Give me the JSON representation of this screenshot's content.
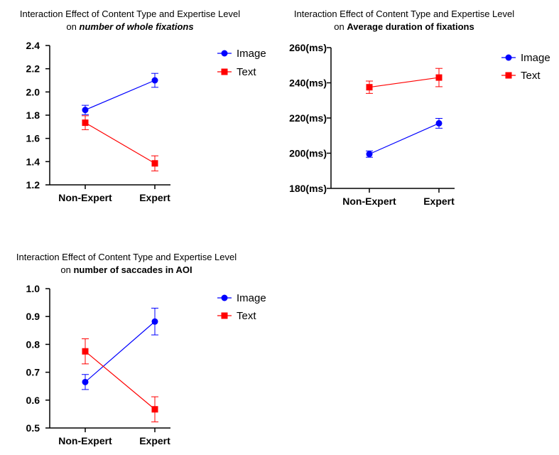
{
  "colors": {
    "image": "#0000ff",
    "text": "#ff0000",
    "axis": "#000000"
  },
  "chart_data": [
    {
      "type": "line",
      "title_prefix": "Interaction Effect of Content Type and Expertise Level",
      "title_on": "on",
      "title_emphasis": "number of whole fixations",
      "title_emphasis_style": "bold-italic",
      "categories": [
        "Non-Expert",
        "Expert"
      ],
      "ylim": [
        1.2,
        2.4
      ],
      "yticks": [
        1.2,
        1.4,
        1.6,
        1.8,
        2.0,
        2.2,
        2.4
      ],
      "ytick_labels": [
        "1.2",
        "1.4",
        "1.6",
        "1.8",
        "2.0",
        "2.2",
        "2.4"
      ],
      "legend": [
        "Image",
        "Text"
      ],
      "series": [
        {
          "name": "Image",
          "values": [
            1.845,
            2.1
          ],
          "err": [
            0.04,
            0.06
          ]
        },
        {
          "name": "Text",
          "values": [
            1.735,
            1.385
          ],
          "err": [
            0.06,
            0.065
          ]
        }
      ]
    },
    {
      "type": "line",
      "title_prefix": "Interaction Effect of Content Type and Expertise Level",
      "title_on": "on",
      "title_emphasis": "Average duration of fixations",
      "title_emphasis_style": "bold",
      "categories": [
        "Non-Expert",
        "Expert"
      ],
      "ylim": [
        180,
        260
      ],
      "yticks": [
        180,
        200,
        220,
        240,
        260
      ],
      "ytick_labels": [
        "180(ms)",
        "200(ms)",
        "220(ms)",
        "240(ms)",
        "260(ms)"
      ],
      "legend": [
        "Image",
        "Text"
      ],
      "series": [
        {
          "name": "Image",
          "values": [
            199.5,
            217
          ],
          "err": [
            1.8,
            2.8
          ]
        },
        {
          "name": "Text",
          "values": [
            237.5,
            243
          ],
          "err": [
            3.5,
            5.2
          ]
        }
      ]
    },
    {
      "type": "line",
      "title_prefix": "Interaction Effect of Content Type and Expertise Level",
      "title_on": "on",
      "title_emphasis": "number of saccades in AOI",
      "title_emphasis_style": "bold",
      "categories": [
        "Non-Expert",
        "Expert"
      ],
      "ylim": [
        0.5,
        1.0
      ],
      "yticks": [
        0.5,
        0.6,
        0.7,
        0.8,
        0.9,
        1.0
      ],
      "ytick_labels": [
        "0.5",
        "0.6",
        "0.7",
        "0.8",
        "0.9",
        "1.0"
      ],
      "legend": [
        "Image",
        "Text"
      ],
      "series": [
        {
          "name": "Image",
          "values": [
            0.665,
            0.882
          ],
          "err": [
            0.027,
            0.048
          ]
        },
        {
          "name": "Text",
          "values": [
            0.775,
            0.567
          ],
          "err": [
            0.045,
            0.045
          ]
        }
      ]
    }
  ]
}
